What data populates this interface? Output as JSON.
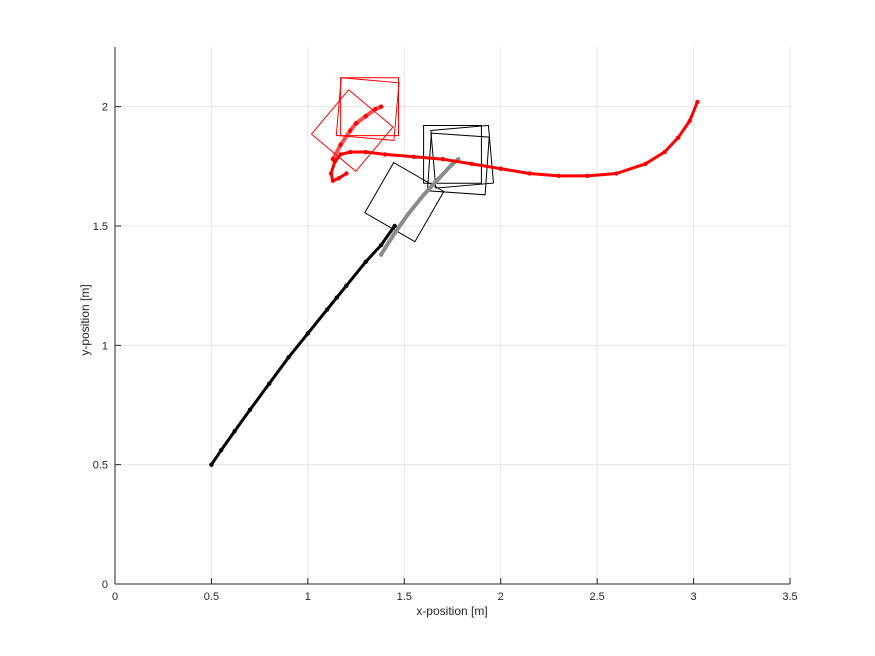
{
  "chart_data": {
    "type": "line",
    "title": "",
    "xlabel": "x-position [m]",
    "ylabel": "y-position [m]",
    "xlim": [
      0,
      3.5
    ],
    "ylim": [
      0,
      2.25
    ],
    "xticks": [
      0,
      0.5,
      1,
      1.5,
      2,
      2.5,
      3,
      3.5
    ],
    "xtick_labels": [
      "0",
      "0.5",
      "1",
      "1.5",
      "2",
      "2.5",
      "3",
      "3.5"
    ],
    "yticks": [
      0,
      0.5,
      1,
      1.5,
      2
    ],
    "ytick_labels": [
      "0",
      "0.5",
      "1",
      "1.5",
      "2"
    ],
    "grid": true,
    "series": [
      {
        "color": "#000000",
        "role": "trajectory",
        "x": [
          0.5,
          0.55,
          0.62,
          0.7,
          0.8,
          0.9,
          1.0,
          1.1,
          1.15,
          1.2,
          1.3,
          1.38,
          1.45
        ],
        "y": [
          0.5,
          0.56,
          0.64,
          0.73,
          0.84,
          0.95,
          1.05,
          1.15,
          1.2,
          1.25,
          1.35,
          1.42,
          1.5
        ]
      },
      {
        "color": "#8c8c8c",
        "role": "trajectory-faded",
        "x": [
          1.38,
          1.45,
          1.52,
          1.6,
          1.68,
          1.75,
          1.78
        ],
        "y": [
          1.38,
          1.47,
          1.55,
          1.63,
          1.7,
          1.76,
          1.78
        ]
      },
      {
        "color": "#ff0000",
        "role": "trajectory",
        "x": [
          3.02,
          2.98,
          2.92,
          2.85,
          2.75,
          2.6,
          2.45,
          2.3,
          2.15,
          2.0,
          1.85,
          1.7,
          1.55,
          1.4,
          1.3,
          1.22,
          1.17,
          1.14,
          1.12,
          1.13,
          1.16,
          1.2
        ],
        "y": [
          2.02,
          1.94,
          1.87,
          1.81,
          1.76,
          1.72,
          1.71,
          1.71,
          1.72,
          1.74,
          1.76,
          1.78,
          1.79,
          1.8,
          1.81,
          1.81,
          1.8,
          1.77,
          1.72,
          1.69,
          1.7,
          1.72
        ]
      },
      {
        "color": "#ff0000",
        "role": "trajectory-inner",
        "x": [
          1.13,
          1.17,
          1.22,
          1.25,
          1.3,
          1.35,
          1.38
        ],
        "y": [
          1.78,
          1.84,
          1.9,
          1.93,
          1.96,
          1.99,
          2.0
        ]
      }
    ],
    "boxes": [
      {
        "color": "#000000",
        "center": [
          1.5,
          1.6
        ],
        "size": 0.3,
        "angle": 30
      },
      {
        "color": "#000000",
        "center": [
          1.75,
          1.8
        ],
        "size": 0.3,
        "angle": 0
      },
      {
        "color": "#000000",
        "center": [
          1.78,
          1.76
        ],
        "size": 0.3,
        "angle": 4
      },
      {
        "color": "#000000",
        "center": [
          1.8,
          1.79
        ],
        "size": 0.3,
        "angle": -5
      },
      {
        "color": "#ff0000",
        "center": [
          1.32,
          2.0
        ],
        "size": 0.3,
        "angle": 0
      },
      {
        "color": "#ff0000",
        "center": [
          1.31,
          1.99
        ],
        "size": 0.3,
        "angle": 5
      },
      {
        "color": "#ff0000",
        "center": [
          1.23,
          1.9
        ],
        "size": 0.3,
        "angle": 40
      }
    ]
  }
}
